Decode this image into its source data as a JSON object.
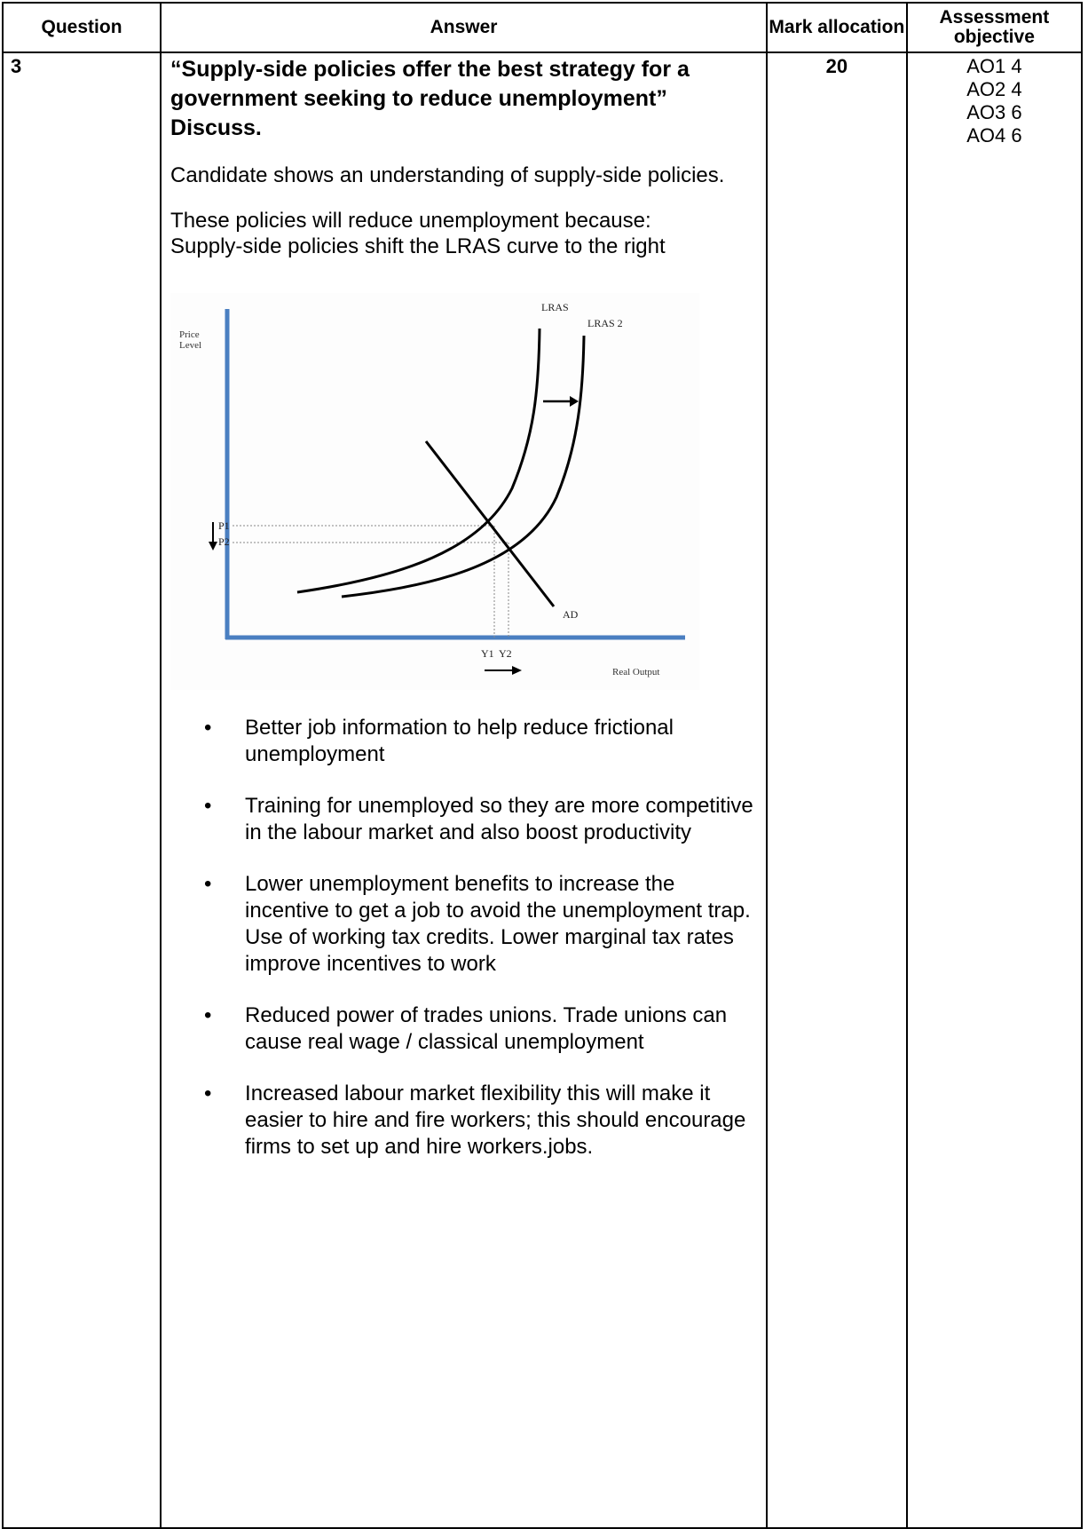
{
  "headers": {
    "question": "Question",
    "answer": "Answer",
    "mark_allocation": "Mark allocation",
    "assessment_objective": "Assessment objective"
  },
  "row": {
    "question_number": "3",
    "title": "“Supply-side policies offer the best strategy for a government seeking to reduce unemployment” Discuss.",
    "intro": "Candidate shows an understanding of supply-side policies.",
    "reason_line1": "These policies will reduce unemployment because:",
    "reason_line2": "Supply-side policies shift the LRAS curve to the right",
    "marks": "20",
    "assessment_objectives": [
      "AO1 4",
      "AO2 4",
      "AO3 6",
      "AO4 6"
    ],
    "bullets": [
      "Better job information to help reduce frictional unemployment",
      "Training for unemployed so they are more competitive in the labour market and also boost productivity",
      "Lower unemployment benefits to increase the incentive to get a job to avoid the unemployment trap. Use of working tax credits. Lower marginal tax rates improve incentives to work",
      "Reduced power of trades unions. Trade unions can cause real wage / classical unemployment",
      "Increased labour market flexibility this will make it easier to hire and fire workers; this should encourage firms to set up and hire workers.jobs."
    ],
    "bullet_symbol": "•"
  },
  "chart_data": {
    "type": "line",
    "ylabel": "Price Level",
    "xlabel": "Real Output",
    "curve_labels": {
      "lras": "LRAS",
      "lras2": "LRAS 2",
      "ad": "AD"
    },
    "price_labels": [
      "P1",
      "P2"
    ],
    "output_labels": [
      "Y1",
      "Y2"
    ],
    "line_color": "#000000",
    "axis_color": "#4a7fc1",
    "guide_color": "#888888"
  }
}
